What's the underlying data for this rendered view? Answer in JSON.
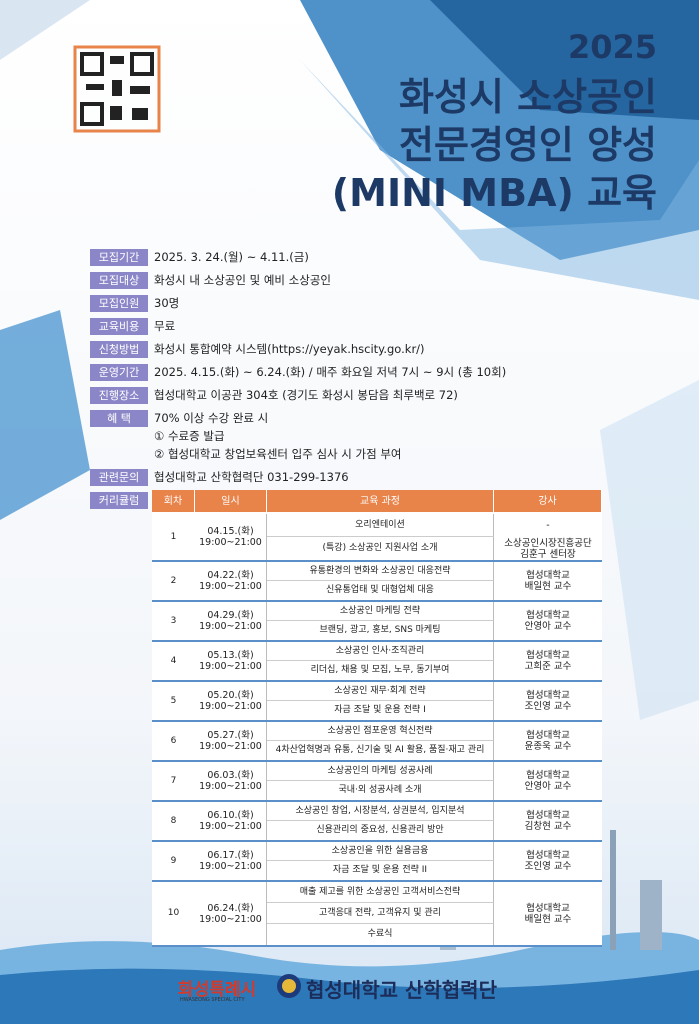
{
  "header": {
    "year": "2025",
    "title": [
      "화성시 소상공인",
      "전문경영인 양성",
      "(MINI MBA) 교육"
    ]
  },
  "info": [
    {
      "label": "모집기간",
      "value": [
        "2025. 3. 24.(월) ~ 4.11.(금)"
      ]
    },
    {
      "label": "모집대상",
      "value": [
        "화성시 내 소상공인 및 예비 소상공인"
      ]
    },
    {
      "label": "모집인원",
      "value": [
        "30명"
      ]
    },
    {
      "label": "교육비용",
      "value": [
        "무료"
      ]
    },
    {
      "label": "신청방법",
      "value": [
        "화성시 통합예약 시스템(https://yeyak.hscity.go.kr/)"
      ]
    },
    {
      "label": "운영기간",
      "value": [
        "2025. 4.15.(화) ~ 6.24.(화) / 매주 화요일 저녁 7시 ~ 9시 (총 10회)"
      ]
    },
    {
      "label": "진행장소",
      "value": [
        "협성대학교 이공관 304호 (경기도 화성시 봉담읍 최루백로 72)"
      ]
    },
    {
      "label": "혜 택",
      "value": [
        "70% 이상 수강 완료 시",
        "① 수료증 발급",
        "② 협성대학교 창업보육센터 입주 심사 시 가점 부여"
      ]
    },
    {
      "label": "관련문의",
      "value": [
        "협성대학교 산학협력단 031-299-1376"
      ]
    },
    {
      "label": "커리큘럼"
    }
  ],
  "table": {
    "columns": [
      "회차",
      "일시",
      "교육 과정",
      "강사"
    ],
    "rows": [
      {
        "no": "1",
        "date": "04.15.(화)",
        "time": "19:00~21:00",
        "courses": [
          "오리엔테이션",
          "(특강) 소상공인 지원사업 소개"
        ],
        "instructor": [
          [
            "-"
          ],
          [
            "소상공인시장진흥공단",
            "김훈구 센터장"
          ]
        ]
      },
      {
        "no": "2",
        "date": "04.22.(화)",
        "time": "19:00~21:00",
        "courses": [
          "유통환경의 변화와 소상공인 대응전략",
          "신유통업태 및 대형업체 대응"
        ],
        "instructor": [
          [
            "협성대학교",
            "배일현 교수"
          ]
        ]
      },
      {
        "no": "3",
        "date": "04.29.(화)",
        "time": "19:00~21:00",
        "courses": [
          "소상공인 마케팅 전략",
          "브랜딩, 광고, 홍보, SNS 마케팅"
        ],
        "instructor": [
          [
            "협성대학교",
            "안영아 교수"
          ]
        ]
      },
      {
        "no": "4",
        "date": "05.13.(화)",
        "time": "19:00~21:00",
        "courses": [
          "소상공인 인사·조직관리",
          "리더십, 채용 및 모집, 노무, 동기부여"
        ],
        "instructor": [
          [
            "협성대학교",
            "고희준 교수"
          ]
        ]
      },
      {
        "no": "5",
        "date": "05.20.(화)",
        "time": "19:00~21:00",
        "courses": [
          "소상공인 재무·회계 전략",
          "자금 조달 및 운용 전략 I"
        ],
        "instructor": [
          [
            "협성대학교",
            "조인영 교수"
          ]
        ]
      },
      {
        "no": "6",
        "date": "05.27.(화)",
        "time": "19:00~21:00",
        "courses": [
          "소상공인 점포운영 혁신전략",
          "4차산업혁명과 유통, 신기술 및 AI 활용, 품질·재고 관리"
        ],
        "instructor": [
          [
            "협성대학교",
            "윤종욱 교수"
          ]
        ]
      },
      {
        "no": "7",
        "date": "06.03.(화)",
        "time": "19:00~21:00",
        "courses": [
          "소상공인의 마케팅 성공사례",
          "국내·외 성공사례 소개"
        ],
        "instructor": [
          [
            "협성대학교",
            "안영아 교수"
          ]
        ]
      },
      {
        "no": "8",
        "date": "06.10.(화)",
        "time": "19:00~21:00",
        "courses": [
          "소상공인 창업, 시장분석, 상권분석, 입지분석",
          "신용관리의 중요성, 신용관리 방안"
        ],
        "instructor": [
          [
            "협성대학교",
            "김창현 교수"
          ]
        ]
      },
      {
        "no": "9",
        "date": "06.17.(화)",
        "time": "19:00~21:00",
        "courses": [
          "소상공인을 위한 실용금융",
          "자금 조달 및 운용 전략 II"
        ],
        "instructor": [
          [
            "협성대학교",
            "조인영 교수"
          ]
        ]
      },
      {
        "no": "10",
        "date": "06.24.(화)",
        "time": "19:00~21:00",
        "courses": [
          "매출 제고를 위한 소상공인 고객서비스전략",
          "고객응대 전략, 고객유지 및 관리",
          "수료식"
        ],
        "instructor": [
          [
            "협성대학교",
            "배일현 교수"
          ]
        ]
      }
    ]
  },
  "footer": {
    "city": "화성특례시",
    "city_en": "HWASEONG SPECIAL CITY",
    "university": "협성대학교 산학협력단"
  }
}
